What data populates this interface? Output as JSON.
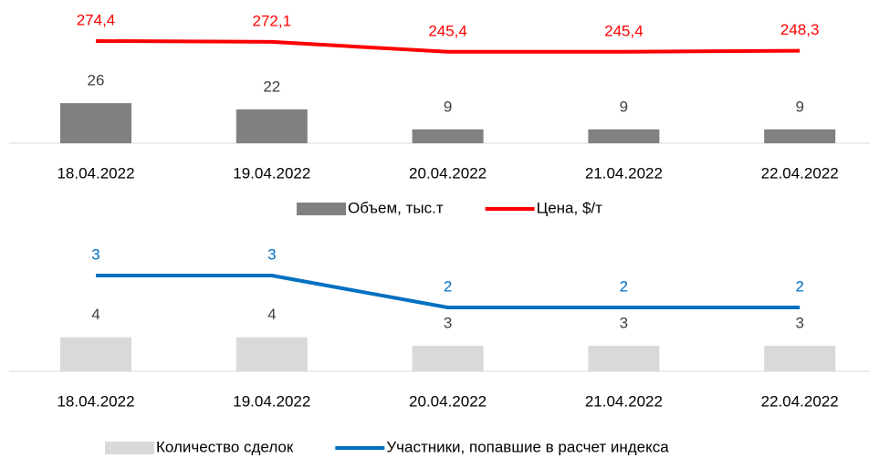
{
  "chart_data": [
    {
      "type": "bar",
      "categories": [
        "18.04.2022",
        "19.04.2022",
        "20.04.2022",
        "21.04.2022",
        "22.04.2022"
      ],
      "ylim": [
        0,
        87
      ],
      "y2lim": [
        0,
        360
      ],
      "series": [
        {
          "name": "Объем, тыс.т",
          "type": "bar",
          "color": "#808080",
          "values": [
            26,
            22,
            9,
            9,
            9
          ]
        },
        {
          "name": "Цена, $/т",
          "type": "line",
          "axis": "y2",
          "color": "#ff0000",
          "values": [
            274.4,
            272.1,
            245.4,
            245.4,
            248.3
          ],
          "value_labels": [
            "274,4",
            "272,1",
            "245,4",
            "245,4",
            "248,3"
          ]
        }
      ]
    },
    {
      "type": "bar",
      "categories": [
        "18.04.2022",
        "19.04.2022",
        "20.04.2022",
        "21.04.2022",
        "22.04.2022"
      ],
      "ylim": [
        0,
        15
      ],
      "y2lim": [
        0,
        4
      ],
      "series": [
        {
          "name": "Количество сделок",
          "type": "bar",
          "color": "#d9d9d9",
          "values": [
            4,
            4,
            3,
            3,
            3
          ]
        },
        {
          "name": "Участники, попавшие в расчет индекса",
          "type": "line",
          "axis": "y2",
          "color": "#0070c0",
          "values": [
            3,
            3,
            2,
            2,
            2
          ]
        }
      ]
    }
  ]
}
